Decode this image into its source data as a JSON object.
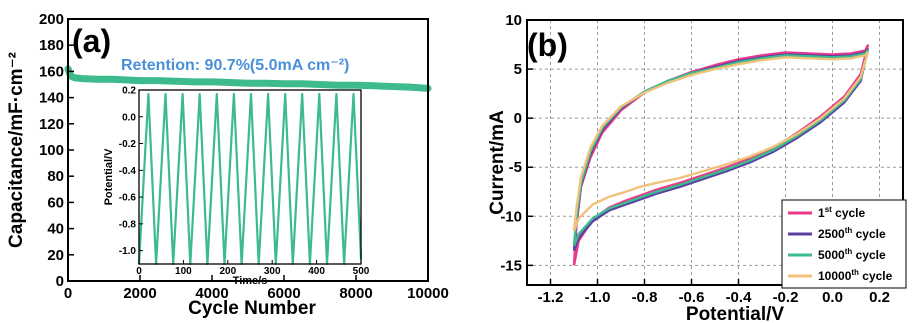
{
  "chart_data": [
    {
      "type": "scatter",
      "panel_label": "(a)",
      "annotation": "Retention: 90.7%(5.0mA cm⁻²)",
      "xlabel": "Cycle Number",
      "ylabel": "Capacitance/mF·cm⁻²",
      "xlim": [
        0,
        10000
      ],
      "ylim": [
        0,
        200
      ],
      "xticks": [
        "0",
        "2000",
        "4000",
        "6000",
        "8000",
        "10000"
      ],
      "yticks": [
        "0",
        "20",
        "40",
        "60",
        "80",
        "100",
        "120",
        "140",
        "160",
        "180",
        "200"
      ],
      "series": [
        {
          "color": "#3dbb8c",
          "x": [
            0,
            50,
            100,
            200,
            400,
            800,
            1200,
            1600,
            2000,
            2500,
            3000,
            3500,
            4000,
            4500,
            5000,
            5500,
            6000,
            6500,
            7000,
            7500,
            8000,
            8500,
            9000,
            9500,
            10000
          ],
          "y": [
            162,
            158,
            156,
            155,
            154.5,
            154,
            154,
            153.5,
            153,
            153,
            152.5,
            152,
            152,
            151.5,
            151,
            151,
            150.5,
            150.5,
            150,
            149.5,
            149.5,
            149,
            148.5,
            148,
            147
          ]
        }
      ],
      "inset": {
        "type": "line",
        "xlabel": "Time/s",
        "ylabel": "Potential/V",
        "xlim": [
          0,
          500
        ],
        "ylim": [
          -1.1,
          0.2
        ],
        "xticks": [
          "0",
          "100",
          "200",
          "300",
          "400",
          "500"
        ],
        "yticks": [
          "-1.0",
          "-0.8",
          "-0.6",
          "-0.4",
          "-0.2",
          "0.0",
          "0.2"
        ],
        "color": "#3dbb8c",
        "cycles": 13,
        "period_s": 38.5,
        "v_min": -1.1,
        "v_max": 0.17
      }
    },
    {
      "type": "line",
      "panel_label": "(b)",
      "xlabel": "Potential/V",
      "ylabel": "Current/mA",
      "xlim": [
        -1.3,
        0.3
      ],
      "ylim": [
        -17,
        10
      ],
      "xticks": [
        "-1.2",
        "-1.0",
        "-0.8",
        "-0.6",
        "-0.4",
        "-0.2",
        "0.0",
        "0.2"
      ],
      "yticks": [
        "-15",
        "-10",
        "-5",
        "0",
        "5",
        "10"
      ],
      "grid": true,
      "legend_position": "bottom-right",
      "series": [
        {
          "name": "1st cycle",
          "legend_base": "1",
          "legend_sup": "st",
          "legend_tail": " cycle",
          "color": "#e8398a",
          "upper_x": [
            -1.1,
            -1.09,
            -1.07,
            -1.03,
            -0.98,
            -0.9,
            -0.8,
            -0.7,
            -0.6,
            -0.5,
            -0.4,
            -0.3,
            -0.2,
            -0.1,
            0.0,
            0.08,
            0.14,
            0.15
          ],
          "upper_y": [
            -15,
            -11,
            -7,
            -4,
            -1.5,
            0.8,
            2.6,
            3.8,
            4.7,
            5.4,
            6.0,
            6.4,
            6.7,
            6.6,
            6.5,
            6.6,
            6.9,
            7.4
          ],
          "lower_x": [
            0.15,
            0.12,
            0.05,
            -0.05,
            -0.15,
            -0.25,
            -0.35,
            -0.45,
            -0.55,
            -0.65,
            -0.75,
            -0.82,
            -0.88,
            -0.95,
            -1.02,
            -1.08,
            -1.1
          ],
          "lower_y": [
            7.4,
            4.5,
            2.2,
            0.2,
            -1.5,
            -3.0,
            -4.1,
            -5.0,
            -5.8,
            -6.6,
            -7.3,
            -7.9,
            -8.4,
            -9.1,
            -10.3,
            -12.5,
            -15
          ]
        },
        {
          "name": "2500th cycle",
          "legend_base": "2500",
          "legend_sup": "th",
          "legend_tail": " cycle",
          "color": "#5b3fa6",
          "upper_x": [
            -1.1,
            -1.09,
            -1.07,
            -1.03,
            -0.98,
            -0.9,
            -0.8,
            -0.7,
            -0.6,
            -0.5,
            -0.4,
            -0.3,
            -0.2,
            -0.1,
            0.0,
            0.08,
            0.14,
            0.15
          ],
          "upper_y": [
            -13.5,
            -10.5,
            -6.8,
            -3.6,
            -1.2,
            1.0,
            2.7,
            3.8,
            4.6,
            5.2,
            5.8,
            6.2,
            6.5,
            6.4,
            6.3,
            6.4,
            6.7,
            7.0
          ],
          "lower_x": [
            0.15,
            0.12,
            0.05,
            -0.05,
            -0.15,
            -0.25,
            -0.35,
            -0.45,
            -0.55,
            -0.65,
            -0.75,
            -0.82,
            -0.88,
            -0.95,
            -1.02,
            -1.08,
            -1.1
          ],
          "lower_y": [
            7.0,
            3.8,
            1.6,
            -0.4,
            -2.0,
            -3.4,
            -4.5,
            -5.4,
            -6.2,
            -7.0,
            -7.7,
            -8.3,
            -8.8,
            -9.4,
            -10.5,
            -12.2,
            -13.5
          ]
        },
        {
          "name": "5000th cycle",
          "legend_base": "5000",
          "legend_sup": "th",
          "legend_tail": " cycle",
          "color": "#3dbb8c",
          "upper_x": [
            -1.1,
            -1.09,
            -1.07,
            -1.03,
            -0.98,
            -0.9,
            -0.8,
            -0.7,
            -0.6,
            -0.5,
            -0.4,
            -0.3,
            -0.2,
            -0.1,
            0.0,
            0.08,
            0.14,
            0.15
          ],
          "upper_y": [
            -13,
            -10.2,
            -6.6,
            -3.4,
            -1.0,
            1.1,
            2.7,
            3.8,
            4.6,
            5.1,
            5.7,
            6.1,
            6.4,
            6.3,
            6.2,
            6.3,
            6.6,
            6.9
          ],
          "lower_x": [
            0.15,
            0.12,
            0.05,
            -0.05,
            -0.15,
            -0.25,
            -0.35,
            -0.45,
            -0.55,
            -0.65,
            -0.75,
            -0.82,
            -0.88,
            -0.95,
            -1.02,
            -1.08,
            -1.1
          ],
          "lower_y": [
            6.9,
            4.0,
            1.8,
            -0.2,
            -1.8,
            -3.2,
            -4.3,
            -5.2,
            -6.0,
            -6.8,
            -7.5,
            -8.1,
            -8.6,
            -9.2,
            -10.2,
            -11.8,
            -13
          ]
        },
        {
          "name": "10000th cycle",
          "legend_base": "10000",
          "legend_sup": "th",
          "legend_tail": " cycle",
          "color": "#f0c27a",
          "upper_x": [
            -1.1,
            -1.09,
            -1.07,
            -1.03,
            -0.98,
            -0.9,
            -0.8,
            -0.7,
            -0.6,
            -0.5,
            -0.4,
            -0.3,
            -0.2,
            -0.1,
            0.0,
            0.08,
            0.14,
            0.15
          ],
          "upper_y": [
            -11.5,
            -9.2,
            -6.0,
            -3.0,
            -0.8,
            1.2,
            2.6,
            3.6,
            4.4,
            5.0,
            5.5,
            5.9,
            6.2,
            6.1,
            6.0,
            6.1,
            6.4,
            6.7
          ],
          "lower_x": [
            0.15,
            0.12,
            0.05,
            -0.05,
            -0.15,
            -0.25,
            -0.35,
            -0.45,
            -0.55,
            -0.65,
            -0.75,
            -0.82,
            -0.88,
            -0.95,
            -1.02,
            -1.08,
            -1.1
          ],
          "lower_y": [
            6.7,
            4.2,
            2.0,
            0.0,
            -1.6,
            -2.9,
            -3.9,
            -4.7,
            -5.4,
            -6.1,
            -6.6,
            -7.0,
            -7.5,
            -8.0,
            -8.8,
            -10.2,
            -11.5
          ]
        }
      ]
    }
  ]
}
